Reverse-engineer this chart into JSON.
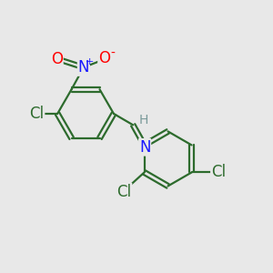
{
  "bg_color": "#e8e8e8",
  "bond_color": "#2d6b2d",
  "bond_width": 1.6,
  "atom_colors": {
    "N_nitro": "#1a1aff",
    "O": "#ff0000",
    "Cl": "#2d6b2d",
    "N_imine": "#1a1aff",
    "H": "#7a9a9a",
    "C": "#2d6b2d"
  },
  "font_size_atom": 12,
  "font_size_small": 10,
  "font_size_super": 8
}
